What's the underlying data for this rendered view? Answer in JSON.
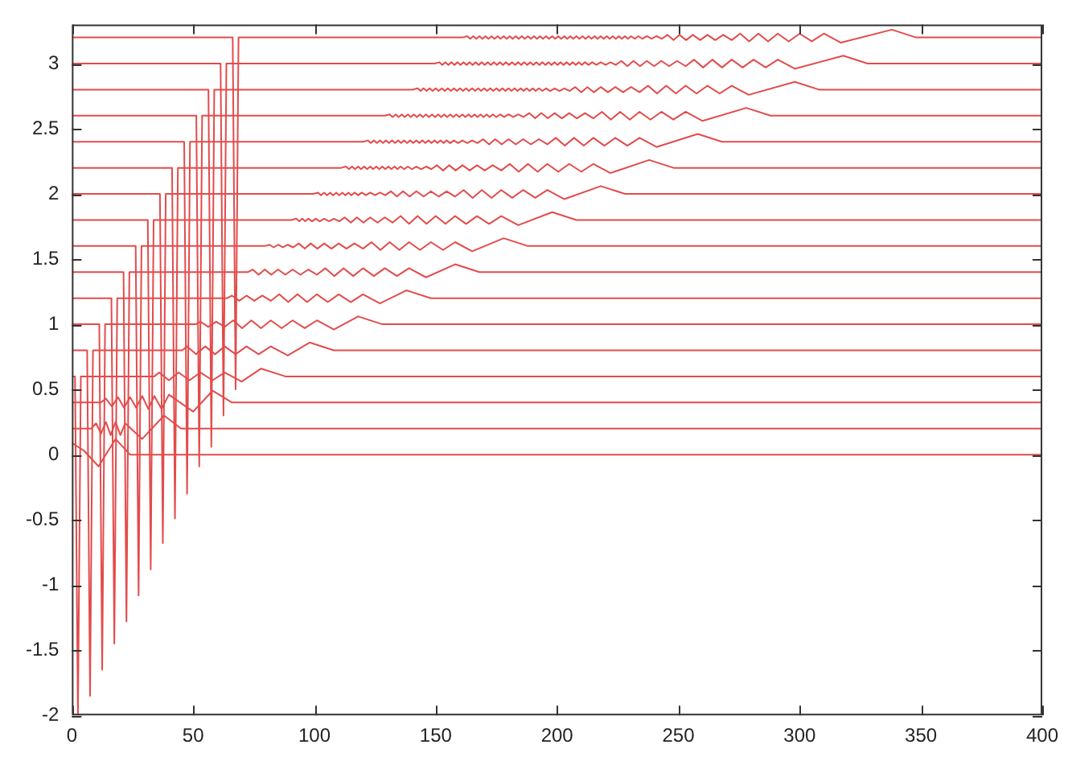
{
  "chart_data": {
    "type": "line",
    "xlim": [
      0,
      400
    ],
    "ylim": [
      -2,
      3.3
    ],
    "xticks": [
      0,
      50,
      100,
      150,
      200,
      250,
      300,
      350,
      400
    ],
    "yticks": [
      -2,
      -1.5,
      -1,
      -0.5,
      0,
      0.5,
      1,
      1.5,
      2,
      2.5,
      3
    ],
    "series": [
      {
        "color": "#e34b4b",
        "x": [
          0,
          5,
          11,
          18,
          24,
          400
        ],
        "values": [
          0.09,
          0.03,
          -0.09,
          0.12,
          0,
          0
        ]
      },
      {
        "color": "#e34b4b",
        "x": [
          0,
          8,
          10,
          12,
          14,
          16,
          18,
          20,
          22,
          29,
          38,
          45,
          400
        ],
        "values": [
          0.2,
          0.2,
          0.24,
          0.16,
          0.25,
          0.15,
          0.25,
          0.15,
          0.24,
          0.12,
          0.3,
          0.2,
          0.2
        ]
      },
      {
        "color": "#e34b4b",
        "x": [
          0,
          12,
          14,
          16.5,
          19,
          21.5,
          24,
          26.5,
          29,
          31.5,
          34,
          37,
          40,
          50,
          58,
          66,
          400
        ],
        "values": [
          0.4,
          0.4,
          0.43,
          0.37,
          0.44,
          0.36,
          0.44,
          0.36,
          0.45,
          0.35,
          0.45,
          0.35,
          0.46,
          0.33,
          0.49,
          0.4,
          0.4
        ]
      },
      {
        "color": "#e34b4b",
        "x": [
          0,
          1.3,
          2.5,
          3.7,
          34,
          36,
          40,
          44,
          48.5,
          53,
          58,
          63,
          70,
          78,
          88,
          400
        ],
        "values": [
          0.6,
          0.6,
          -2,
          0.6,
          0.6,
          0.63,
          0.57,
          0.63,
          0.57,
          0.63,
          0.57,
          0.63,
          0.56,
          0.66,
          0.6,
          0.6
        ]
      },
      {
        "color": "#e34b4b",
        "x": [
          0,
          6.3,
          7.5,
          8.7,
          45.5,
          47.5,
          51.2,
          55,
          59,
          63,
          67.5,
          72,
          77,
          82,
          89,
          98,
          108,
          400
        ],
        "values": [
          0.8,
          0.8,
          -1.85,
          0.8,
          0.8,
          0.83,
          0.77,
          0.83,
          0.77,
          0.83,
          0.77,
          0.83,
          0.77,
          0.83,
          0.76,
          0.86,
          0.8,
          0.8
        ]
      },
      {
        "color": "#e34b4b",
        "x": [
          0,
          11.3,
          12.5,
          13.7,
          51,
          53,
          56.2,
          59.5,
          63,
          66.5,
          70.2,
          74,
          78,
          82,
          86.5,
          91,
          96,
          101,
          108,
          118,
          128,
          400
        ],
        "values": [
          1,
          1,
          -1.65,
          1,
          1,
          1.02,
          0.98,
          1.02,
          0.98,
          1.03,
          0.97,
          1.03,
          0.97,
          1.03,
          0.97,
          1.03,
          0.97,
          1.03,
          0.96,
          1.06,
          1,
          1
        ]
      },
      {
        "color": "#e34b4b",
        "x": [
          0,
          16.3,
          17.5,
          18.7,
          64,
          66,
          69,
          72,
          75.2,
          78.5,
          82,
          85.5,
          89.2,
          93,
          97,
          101,
          105.5,
          110,
          115,
          120,
          127,
          138,
          148,
          400
        ],
        "values": [
          1.2,
          1.2,
          -1.45,
          1.2,
          1.2,
          1.22,
          1.18,
          1.22,
          1.18,
          1.22,
          1.18,
          1.23,
          1.17,
          1.23,
          1.17,
          1.23,
          1.17,
          1.23,
          1.17,
          1.23,
          1.16,
          1.26,
          1.2,
          1.2
        ]
      },
      {
        "color": "#e34b4b",
        "x": [
          0,
          21.3,
          22.5,
          23.7,
          72.5,
          74.5,
          77,
          79.5,
          82.2,
          85,
          88,
          91,
          94.2,
          97.5,
          101,
          104.5,
          108.2,
          112,
          116,
          120,
          124.5,
          129,
          134,
          139,
          146,
          158,
          168,
          400
        ],
        "values": [
          1.4,
          1.4,
          -1.28,
          1.4,
          1.4,
          1.42,
          1.38,
          1.42,
          1.38,
          1.42,
          1.38,
          1.42,
          1.38,
          1.42,
          1.38,
          1.43,
          1.37,
          1.43,
          1.37,
          1.43,
          1.37,
          1.43,
          1.37,
          1.43,
          1.36,
          1.46,
          1.4,
          1.4
        ]
      },
      {
        "color": "#e34b4b",
        "x": [
          0,
          26.3,
          27.5,
          28.7,
          79.5,
          81.5,
          83.2,
          85,
          87,
          89,
          91.2,
          93.5,
          96,
          98.5,
          101.2,
          104,
          107,
          110,
          113.2,
          116.5,
          120,
          123.5,
          127.2,
          131,
          135,
          139,
          143.5,
          148,
          153,
          158,
          165,
          178,
          188,
          400
        ],
        "values": [
          1.6,
          1.6,
          -1.08,
          1.6,
          1.6,
          1.61,
          1.59,
          1.61,
          1.59,
          1.61,
          1.59,
          1.62,
          1.58,
          1.62,
          1.58,
          1.62,
          1.58,
          1.62,
          1.58,
          1.62,
          1.58,
          1.63,
          1.57,
          1.63,
          1.57,
          1.63,
          1.57,
          1.63,
          1.57,
          1.63,
          1.56,
          1.66,
          1.6,
          1.6
        ]
      },
      {
        "color": "#e34b4b",
        "x": [
          0,
          31.3,
          32.5,
          33.7,
          90.5,
          92.5,
          93.7,
          95,
          96.2,
          97.5,
          99,
          100.5,
          102.2,
          104,
          106,
          108,
          110.2,
          112.5,
          115,
          117.5,
          120.2,
          123,
          126,
          129,
          132.2,
          135.5,
          139,
          142.5,
          146.2,
          150,
          154,
          158,
          162.5,
          167,
          172,
          177,
          184,
          198,
          208,
          400
        ],
        "values": [
          1.8,
          1.8,
          -0.88,
          1.8,
          1.8,
          1.81,
          1.79,
          1.81,
          1.79,
          1.81,
          1.79,
          1.81,
          1.79,
          1.81,
          1.79,
          1.81,
          1.79,
          1.82,
          1.78,
          1.82,
          1.78,
          1.82,
          1.78,
          1.82,
          1.78,
          1.83,
          1.77,
          1.83,
          1.77,
          1.83,
          1.77,
          1.83,
          1.77,
          1.83,
          1.77,
          1.83,
          1.76,
          1.86,
          1.8,
          1.8
        ]
      },
      {
        "color": "#e34b4b",
        "x": [
          0,
          36.3,
          37.5,
          38.7,
          99.5,
          101.5,
          102.7,
          104,
          105.2,
          106.5,
          107.7,
          109,
          110.2,
          111.5,
          112.7,
          114,
          115.2,
          116.5,
          118,
          119.5,
          121.2,
          123,
          125,
          127,
          129.2,
          131.5,
          134,
          136.5,
          139.2,
          142,
          145,
          148,
          151.2,
          154.5,
          158,
          161.5,
          165.2,
          169,
          173,
          177,
          181.5,
          186,
          191,
          196,
          203,
          218,
          228,
          400
        ],
        "values": [
          2,
          2,
          -0.68,
          2,
          2,
          2.01,
          1.99,
          2.01,
          1.99,
          2.01,
          1.99,
          2.01,
          1.99,
          2.01,
          1.99,
          2.01,
          1.99,
          2.01,
          1.99,
          2.01,
          1.99,
          2.01,
          1.99,
          2.01,
          1.99,
          2.02,
          1.98,
          2.02,
          1.98,
          2.02,
          1.98,
          2.02,
          1.98,
          2.02,
          1.98,
          2.03,
          1.97,
          2.03,
          1.97,
          2.03,
          1.97,
          2.03,
          1.97,
          2.03,
          1.96,
          2.06,
          2,
          2
        ]
      },
      {
        "color": "#e34b4b",
        "x": [
          0,
          41.3,
          42.5,
          43.7,
          111,
          113,
          114.2,
          115.5,
          116.7,
          118,
          119.2,
          120.5,
          121.7,
          123,
          124.2,
          125.5,
          126.7,
          128,
          129.2,
          130.5,
          131.7,
          133,
          134.2,
          135.5,
          137,
          138.5,
          140.2,
          142,
          144,
          146,
          148.2,
          150.5,
          153,
          155.5,
          158.2,
          161,
          164,
          167,
          170.2,
          173.5,
          177,
          180.5,
          184.2,
          188,
          192,
          196,
          200.5,
          205,
          210,
          215,
          222,
          238,
          248,
          400
        ],
        "values": [
          2.2,
          2.2,
          -0.49,
          2.2,
          2.2,
          2.21,
          2.19,
          2.21,
          2.19,
          2.21,
          2.19,
          2.21,
          2.19,
          2.21,
          2.19,
          2.21,
          2.19,
          2.21,
          2.19,
          2.21,
          2.19,
          2.21,
          2.19,
          2.21,
          2.19,
          2.21,
          2.19,
          2.21,
          2.19,
          2.21,
          2.19,
          2.22,
          2.18,
          2.22,
          2.18,
          2.22,
          2.18,
          2.22,
          2.18,
          2.22,
          2.18,
          2.23,
          2.17,
          2.23,
          2.17,
          2.23,
          2.17,
          2.23,
          2.17,
          2.23,
          2.16,
          2.26,
          2.2,
          2.2
        ]
      },
      {
        "color": "#e34b4b",
        "x": [
          0,
          46.3,
          47.5,
          48.7,
          120,
          122,
          123.2,
          124.5,
          125.7,
          127,
          128.2,
          129.5,
          130.7,
          132,
          133.2,
          134.5,
          135.7,
          137,
          138.2,
          139.5,
          140.7,
          142,
          143.2,
          144.5,
          145.7,
          147,
          148.2,
          149.5,
          150.7,
          152,
          153.2,
          154.5,
          156,
          157.5,
          159.2,
          161,
          163,
          165,
          167.2,
          169.5,
          172,
          174.5,
          177.2,
          180,
          183,
          186,
          189.2,
          192.5,
          196,
          199.5,
          203.2,
          207,
          211,
          215,
          219.5,
          224,
          229,
          234,
          241,
          258,
          268,
          400
        ],
        "values": [
          2.4,
          2.4,
          -0.3,
          2.4,
          2.4,
          2.41,
          2.39,
          2.41,
          2.39,
          2.41,
          2.39,
          2.41,
          2.39,
          2.41,
          2.39,
          2.41,
          2.39,
          2.41,
          2.39,
          2.41,
          2.39,
          2.41,
          2.39,
          2.41,
          2.39,
          2.41,
          2.39,
          2.41,
          2.39,
          2.41,
          2.39,
          2.41,
          2.39,
          2.41,
          2.39,
          2.41,
          2.39,
          2.41,
          2.39,
          2.42,
          2.38,
          2.42,
          2.38,
          2.42,
          2.38,
          2.42,
          2.38,
          2.42,
          2.38,
          2.43,
          2.37,
          2.43,
          2.37,
          2.43,
          2.37,
          2.43,
          2.37,
          2.43,
          2.36,
          2.46,
          2.4,
          2.4
        ]
      },
      {
        "color": "#e34b4b",
        "x": [
          0,
          51.3,
          52.5,
          53.7,
          129,
          131,
          132.2,
          133.5,
          134.7,
          136,
          137.2,
          138.5,
          139.7,
          141,
          142.2,
          143.5,
          144.7,
          146,
          147.2,
          148.5,
          149.7,
          151,
          152.2,
          153.5,
          154.7,
          156,
          157.2,
          158.5,
          159.7,
          161,
          162.2,
          163.5,
          164.7,
          166,
          167.2,
          168.5,
          169.7,
          171,
          172.2,
          173.5,
          175,
          176.5,
          178.2,
          180,
          182,
          184,
          186.2,
          188.5,
          191,
          193.5,
          196.2,
          199,
          202,
          205,
          208.2,
          211.5,
          215,
          218.5,
          222.2,
          226,
          230,
          234,
          238.5,
          243,
          248,
          253,
          260,
          278,
          288,
          400
        ],
        "values": [
          2.6,
          2.6,
          -0.09,
          2.6,
          2.6,
          2.61,
          2.59,
          2.61,
          2.59,
          2.61,
          2.59,
          2.61,
          2.59,
          2.61,
          2.59,
          2.61,
          2.59,
          2.61,
          2.59,
          2.61,
          2.59,
          2.61,
          2.59,
          2.61,
          2.59,
          2.61,
          2.59,
          2.61,
          2.59,
          2.61,
          2.59,
          2.61,
          2.59,
          2.61,
          2.59,
          2.61,
          2.59,
          2.61,
          2.59,
          2.61,
          2.59,
          2.61,
          2.59,
          2.61,
          2.59,
          2.61,
          2.59,
          2.62,
          2.58,
          2.62,
          2.58,
          2.62,
          2.58,
          2.62,
          2.58,
          2.62,
          2.58,
          2.63,
          2.57,
          2.63,
          2.57,
          2.63,
          2.57,
          2.63,
          2.57,
          2.63,
          2.56,
          2.66,
          2.6,
          2.6
        ]
      },
      {
        "color": "#e34b4b",
        "x": [
          0,
          56.3,
          57.5,
          58.7,
          140.5,
          142.5,
          143.7,
          145,
          146.2,
          147.5,
          148.7,
          150,
          151.2,
          152.5,
          153.7,
          155,
          156.2,
          157.5,
          158.7,
          160,
          161.2,
          162.5,
          163.7,
          165,
          166.2,
          167.5,
          168.7,
          170,
          171.2,
          172.5,
          173.7,
          175,
          176.2,
          177.5,
          178.7,
          180,
          181.2,
          182.5,
          183.7,
          185,
          186.2,
          187.5,
          188.7,
          190,
          191.2,
          192.5,
          194,
          195.5,
          197.2,
          199,
          201,
          203,
          205.2,
          207.5,
          210,
          212.5,
          215.2,
          218,
          221,
          224,
          227.2,
          230.5,
          234,
          237.5,
          241.2,
          245,
          249,
          253,
          257.5,
          262,
          267,
          272,
          279,
          298,
          308,
          400
        ],
        "values": [
          2.8,
          2.8,
          0.06,
          2.8,
          2.8,
          2.81,
          2.79,
          2.81,
          2.79,
          2.81,
          2.79,
          2.81,
          2.79,
          2.81,
          2.79,
          2.81,
          2.79,
          2.81,
          2.79,
          2.81,
          2.79,
          2.81,
          2.79,
          2.81,
          2.79,
          2.81,
          2.79,
          2.81,
          2.79,
          2.81,
          2.79,
          2.81,
          2.79,
          2.81,
          2.79,
          2.81,
          2.79,
          2.81,
          2.79,
          2.81,
          2.79,
          2.81,
          2.79,
          2.81,
          2.79,
          2.81,
          2.79,
          2.81,
          2.79,
          2.81,
          2.79,
          2.81,
          2.79,
          2.82,
          2.78,
          2.82,
          2.78,
          2.82,
          2.78,
          2.82,
          2.78,
          2.82,
          2.78,
          2.83,
          2.77,
          2.83,
          2.77,
          2.83,
          2.77,
          2.83,
          2.77,
          2.83,
          2.76,
          2.86,
          2.8,
          2.8
        ]
      },
      {
        "color": "#e34b4b",
        "x": [
          0,
          61.3,
          62.5,
          63.7,
          149.5,
          151.5,
          152.7,
          154,
          155.2,
          156.5,
          157.7,
          159,
          160.2,
          161.5,
          162.7,
          164,
          165.2,
          166.5,
          167.7,
          169,
          170.2,
          171.5,
          172.7,
          174,
          175.2,
          176.5,
          177.7,
          179,
          180.2,
          181.5,
          182.7,
          184,
          185.2,
          186.5,
          187.7,
          189,
          190.2,
          191.5,
          192.7,
          194,
          195.2,
          196.5,
          197.7,
          199,
          200.2,
          201.5,
          202.7,
          204,
          205.2,
          206.5,
          207.7,
          209,
          210.2,
          211.5,
          213,
          214.5,
          216.2,
          218,
          220,
          222,
          224.2,
          226.5,
          229,
          231.5,
          234.2,
          237,
          240,
          243,
          246.2,
          249.5,
          253,
          256.5,
          260.2,
          264,
          268,
          272,
          276.5,
          281,
          286,
          291,
          298,
          318,
          328,
          400
        ],
        "values": [
          3,
          3,
          0.3,
          3,
          3,
          3.01,
          2.99,
          3.01,
          2.99,
          3.01,
          2.99,
          3.01,
          2.99,
          3.01,
          2.99,
          3.01,
          2.99,
          3.01,
          2.99,
          3.01,
          2.99,
          3.01,
          2.99,
          3.01,
          2.99,
          3.01,
          2.99,
          3.01,
          2.99,
          3.01,
          2.99,
          3.01,
          2.99,
          3.01,
          2.99,
          3.01,
          2.99,
          3.01,
          2.99,
          3.01,
          2.99,
          3.01,
          2.99,
          3.01,
          2.99,
          3.01,
          2.99,
          3.01,
          2.99,
          3.01,
          2.99,
          3.01,
          2.99,
          3.01,
          2.99,
          3.01,
          2.99,
          3.01,
          2.99,
          3.01,
          2.99,
          3.02,
          2.98,
          3.02,
          2.98,
          3.02,
          2.98,
          3.02,
          2.98,
          3.02,
          2.98,
          3.03,
          2.97,
          3.03,
          2.97,
          3.03,
          2.97,
          3.03,
          2.97,
          3.03,
          2.96,
          3.06,
          3,
          3
        ]
      },
      {
        "color": "#e34b4b",
        "x": [
          0,
          66.3,
          67.5,
          68.7,
          161,
          163,
          164.2,
          165.5,
          166.7,
          168,
          169.2,
          170.5,
          171.7,
          173,
          174.2,
          175.5,
          176.7,
          178,
          179.2,
          180.5,
          181.7,
          183,
          184.2,
          185.5,
          186.7,
          188,
          189.2,
          190.5,
          191.7,
          193,
          194.2,
          195.5,
          196.7,
          198,
          199.2,
          200.5,
          201.7,
          203,
          204.2,
          205.5,
          206.7,
          208,
          209.2,
          210.5,
          211.7,
          213,
          214.2,
          215.5,
          216.7,
          218,
          219.2,
          220.5,
          221.7,
          223,
          224.2,
          225.5,
          226.7,
          228,
          229.2,
          230.5,
          232,
          233.5,
          235.2,
          237,
          239,
          241,
          243.2,
          245.5,
          248,
          250.5,
          253.2,
          256,
          259,
          262,
          265.2,
          268.5,
          272,
          275.5,
          279.2,
          283,
          287,
          291,
          295.5,
          300,
          305,
          310,
          317,
          338,
          348,
          400
        ],
        "values": [
          3.2,
          3.2,
          0.5,
          3.2,
          3.2,
          3.21,
          3.19,
          3.21,
          3.19,
          3.21,
          3.19,
          3.21,
          3.19,
          3.21,
          3.19,
          3.21,
          3.19,
          3.21,
          3.19,
          3.21,
          3.19,
          3.21,
          3.19,
          3.21,
          3.19,
          3.21,
          3.19,
          3.21,
          3.19,
          3.21,
          3.19,
          3.21,
          3.19,
          3.21,
          3.19,
          3.21,
          3.19,
          3.21,
          3.19,
          3.21,
          3.19,
          3.21,
          3.19,
          3.21,
          3.19,
          3.21,
          3.19,
          3.21,
          3.19,
          3.21,
          3.19,
          3.21,
          3.19,
          3.21,
          3.19,
          3.21,
          3.19,
          3.21,
          3.19,
          3.21,
          3.19,
          3.21,
          3.19,
          3.21,
          3.19,
          3.21,
          3.19,
          3.22,
          3.18,
          3.22,
          3.18,
          3.22,
          3.18,
          3.22,
          3.18,
          3.22,
          3.18,
          3.23,
          3.17,
          3.23,
          3.17,
          3.23,
          3.17,
          3.23,
          3.17,
          3.23,
          3.16,
          3.26,
          3.2,
          3.2
        ]
      }
    ]
  }
}
